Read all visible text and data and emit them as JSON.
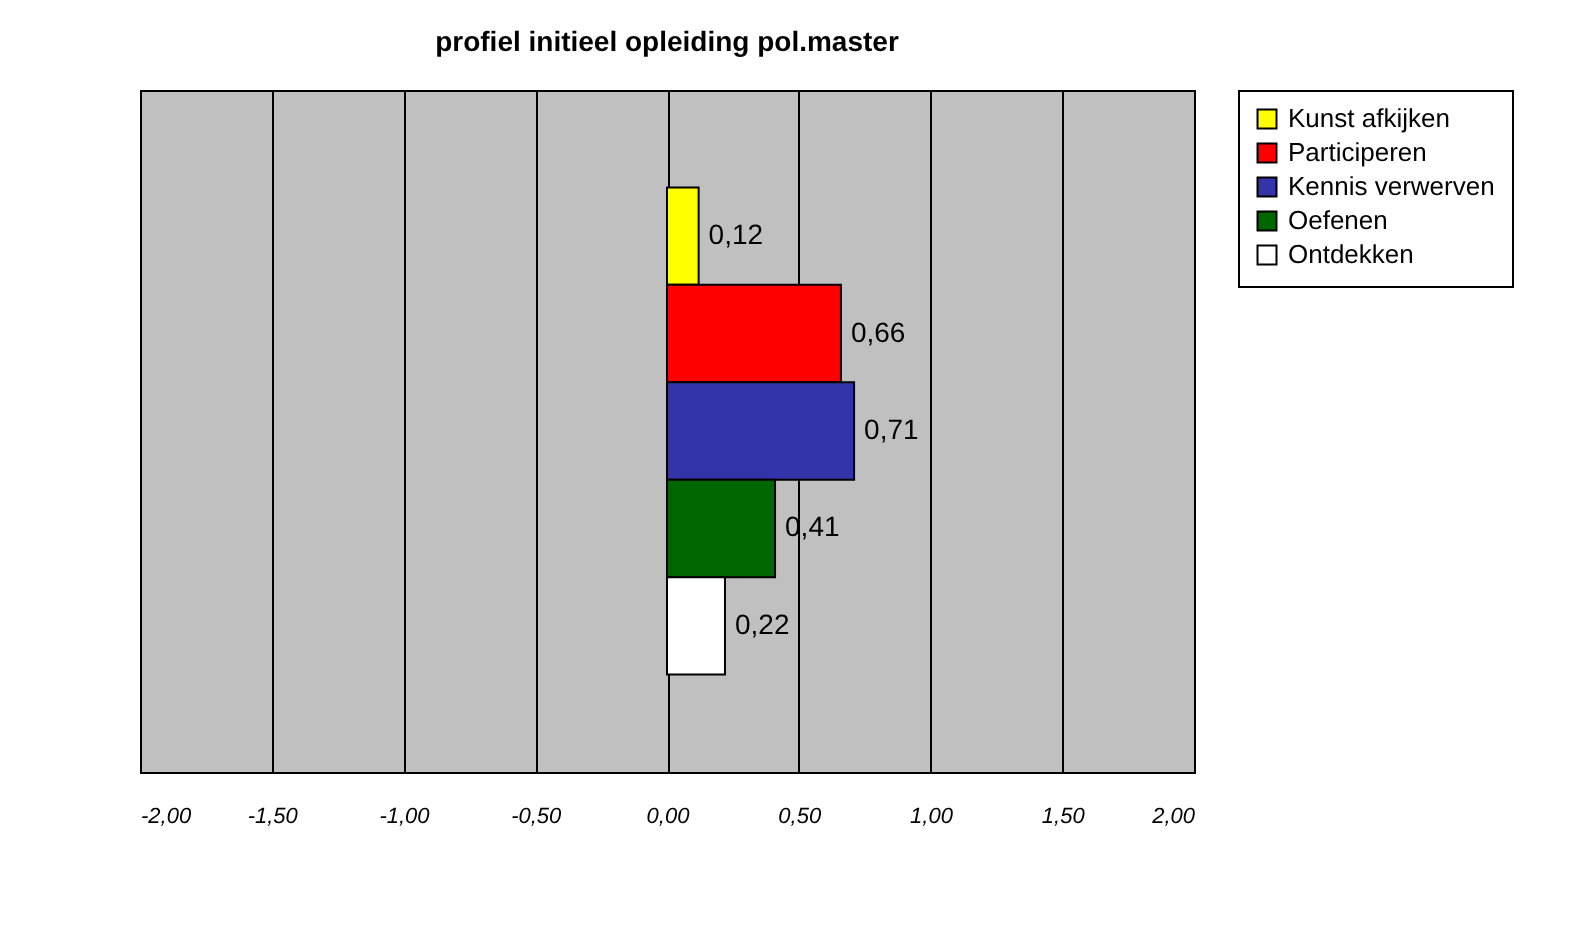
{
  "chart_data": {
    "type": "bar",
    "orientation": "horizontal",
    "title": "profiel initieel opleiding pol.master",
    "categories": [
      null
    ],
    "series": [
      {
        "name": "Kunst afkijken",
        "color": "#ffff00",
        "values": [
          0.12
        ],
        "value_labels": [
          "0,12"
        ]
      },
      {
        "name": "Participeren",
        "color": "#ff0000",
        "values": [
          0.66
        ],
        "value_labels": [
          "0,66"
        ]
      },
      {
        "name": "Kennis verwerven",
        "color": "#3333aa",
        "values": [
          0.71
        ],
        "value_labels": [
          "0,71"
        ]
      },
      {
        "name": "Oefenen",
        "color": "#006600",
        "values": [
          0.41
        ],
        "value_labels": [
          "0,41"
        ]
      },
      {
        "name": "Ontdekken",
        "color": "#ffffff",
        "values": [
          0.22
        ],
        "value_labels": [
          "0,22"
        ]
      }
    ],
    "xlim": [
      -2,
      2
    ],
    "xticks": [
      {
        "value": -2,
        "label": "-2,00"
      },
      {
        "value": -1.5,
        "label": "-1,50"
      },
      {
        "value": -1,
        "label": "-1,00"
      },
      {
        "value": -0.5,
        "label": "-0,50"
      },
      {
        "value": 0,
        "label": "0,00"
      },
      {
        "value": 0.5,
        "label": "0,50"
      },
      {
        "value": 1,
        "label": "1,00"
      },
      {
        "value": 1.5,
        "label": "1,50"
      },
      {
        "value": 2,
        "label": "2,00"
      }
    ],
    "grid": "x",
    "legend": "right"
  }
}
